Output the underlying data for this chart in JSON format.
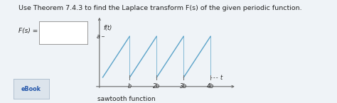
{
  "title_text": "Use Theorem 7.4.3 to find the Laplace transform F(s) of the given periodic function.",
  "fs_label": "F(s) =",
  "graph_ylabel_label": "f(t)",
  "graph_a_label": "a",
  "graph_tick_labels": [
    "b",
    "2b",
    "3b",
    "4b"
  ],
  "t_label": "t",
  "caption": "sawtooth function",
  "ebook_label": "eBook",
  "background_color": "#eff3f7",
  "box_color": "#ffffff",
  "line_color": "#5ba3c9",
  "axis_color": "#666666",
  "text_color": "#222222",
  "title_fontsize": 6.8,
  "label_fontsize": 6.5,
  "tick_fontsize": 5.8,
  "caption_fontsize": 6.5,
  "num_periods": 4,
  "a_value": 1.0,
  "b_value": 1.0
}
